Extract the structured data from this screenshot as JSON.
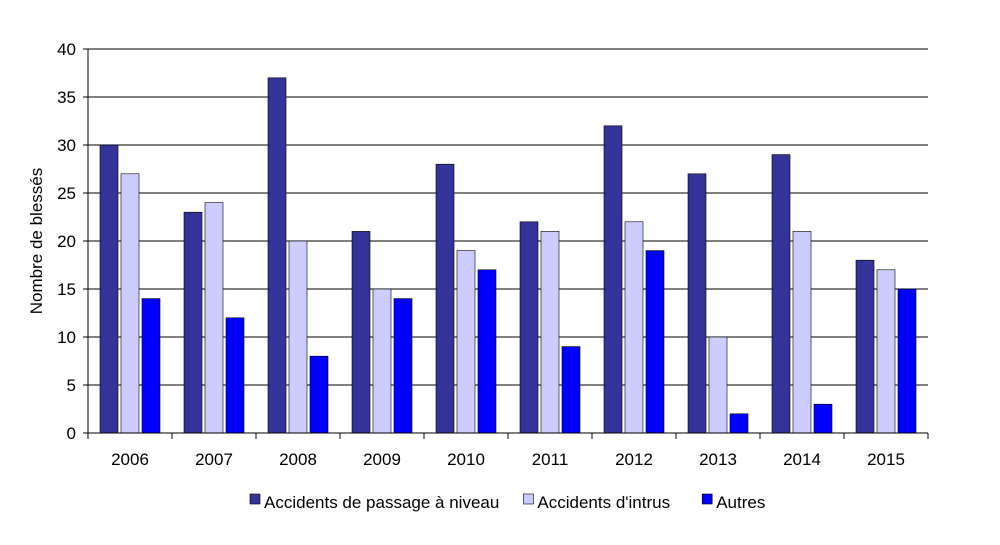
{
  "chart_data": {
    "type": "bar",
    "ylabel": "Nombre  de blessés",
    "xlabel": "",
    "ylim": [
      0,
      40
    ],
    "yticks": [
      "0",
      "5",
      "10",
      "15",
      "20",
      "25",
      "30",
      "35",
      "40"
    ],
    "grid": true,
    "legend_position": "bottom",
    "categories": [
      "2006",
      "2007",
      "2008",
      "2009",
      "2010",
      "2011",
      "2012",
      "2013",
      "2014",
      "2015"
    ],
    "series": [
      {
        "name": "Accidents de passage à niveau",
        "color": "#333399",
        "values": [
          30,
          23,
          37,
          21,
          28,
          22,
          32,
          27,
          29,
          18
        ]
      },
      {
        "name": "Accidents d'intrus",
        "color": "#CCCCFF",
        "values": [
          27,
          24,
          20,
          15,
          19,
          21,
          22,
          10,
          21,
          17
        ]
      },
      {
        "name": "Autres",
        "color": "#0000FF",
        "values": [
          14,
          12,
          8,
          14,
          17,
          9,
          19,
          2,
          3,
          15
        ]
      }
    ]
  }
}
